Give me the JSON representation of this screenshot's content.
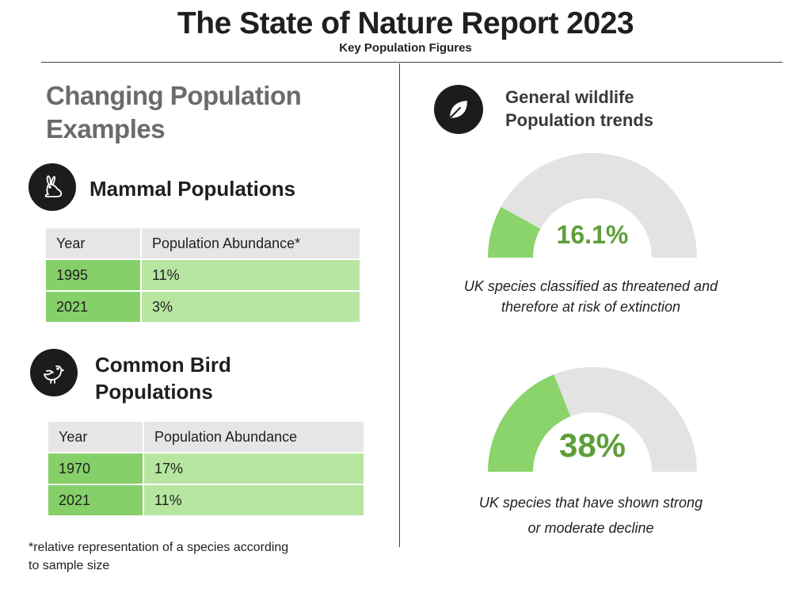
{
  "header": {
    "title": "The State of Nature Report 2023",
    "subtitle": "Key Population Figures"
  },
  "left": {
    "heading_line1": "Changing Population",
    "heading_line2": "Examples",
    "mammal": {
      "icon": "rabbit-icon",
      "title": "Mammal Populations",
      "columns": [
        "Year",
        "Population Abundance*"
      ],
      "rows": [
        {
          "year": "1995",
          "value": "11%"
        },
        {
          "year": "2021",
          "value": "3%"
        }
      ]
    },
    "bird": {
      "icon": "bird-icon",
      "title_line1": "Common Bird",
      "title_line2": "Populations",
      "columns": [
        "Year",
        "Population Abundance"
      ],
      "rows": [
        {
          "year": "1970",
          "value": "17%"
        },
        {
          "year": "2021",
          "value": "11%"
        }
      ]
    },
    "footnote_line1": "*relative representation of a species according",
    "footnote_line2": "to sample size"
  },
  "right": {
    "icon": "leaf-icon",
    "heading_line1": "General wildlife",
    "heading_line2": "Population trends"
  },
  "colors": {
    "gauge_fill": "#8ad46b",
    "gauge_track": "#e3e3e3",
    "value_text": "#5e9e3a"
  },
  "chart_data": [
    {
      "type": "gauge",
      "value": 16.1,
      "max": 100,
      "label": "16.1%",
      "caption_line1": "UK species classified as threatened and",
      "caption_line2": "therefore at risk of extinction"
    },
    {
      "type": "gauge",
      "value": 38,
      "max": 100,
      "label": "38%",
      "caption_line1": "UK species that have shown strong",
      "caption_line2": "or moderate decline"
    }
  ]
}
